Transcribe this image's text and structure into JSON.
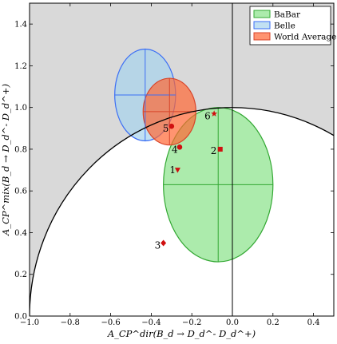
{
  "chart_data": {
    "type": "scatter",
    "title": "",
    "xlabel": "A_CP^dir(B_d → D_d^- D_d^+)",
    "ylabel": "A_CP^mix(B_d → D_d^- D_d^+)",
    "xlim": [
      -1.0,
      0.5
    ],
    "ylim": [
      0.0,
      1.5
    ],
    "xticks": [
      -1.0,
      -0.8,
      -0.6,
      -0.4,
      -0.2,
      0.0,
      0.2,
      0.4
    ],
    "xtick_labels": [
      "−1.0",
      "−0.8",
      "−0.6",
      "−0.4",
      "−0.2",
      "0.0",
      "0.2",
      "0.4"
    ],
    "yticks": [
      0.0,
      0.2,
      0.4,
      0.6,
      0.8,
      1.0,
      1.2,
      1.4
    ],
    "ytick_labels": [
      "0.0",
      "0.2",
      "0.4",
      "0.6",
      "0.8",
      "1.0",
      "1.2",
      "1.4"
    ],
    "unit_circle": {
      "radius": 1.0
    },
    "shaded_region": "outside unit circle",
    "legend_position": "top-right",
    "series": [
      {
        "name": "BaBar",
        "center": [
          -0.07,
          0.63
        ],
        "half_widths": [
          0.27,
          0.37
        ],
        "color": "#7fe07f",
        "edge": "#33a833",
        "alpha": 0.65
      },
      {
        "name": "Belle",
        "center": [
          -0.43,
          1.06
        ],
        "half_widths": [
          0.15,
          0.22
        ],
        "color": "#a7d3ec",
        "edge": "#3b6ef5",
        "alpha": 0.7
      },
      {
        "name": "World Average",
        "center": [
          -0.31,
          0.98
        ],
        "half_widths": [
          0.13,
          0.16
        ],
        "color": "#ff6633",
        "edge": "#d8452a",
        "alpha": 0.7
      }
    ],
    "points": [
      {
        "label": "1",
        "x": -0.27,
        "y": 0.7,
        "marker": "triangle-down"
      },
      {
        "label": "2",
        "x": -0.06,
        "y": 0.8,
        "marker": "square"
      },
      {
        "label": "3",
        "x": -0.34,
        "y": 0.35,
        "marker": "diamond"
      },
      {
        "label": "4",
        "x": -0.26,
        "y": 0.81,
        "marker": "circle"
      },
      {
        "label": "5",
        "x": -0.3,
        "y": 0.91,
        "marker": "circle"
      },
      {
        "label": "6",
        "x": -0.09,
        "y": 0.97,
        "marker": "star"
      }
    ]
  }
}
